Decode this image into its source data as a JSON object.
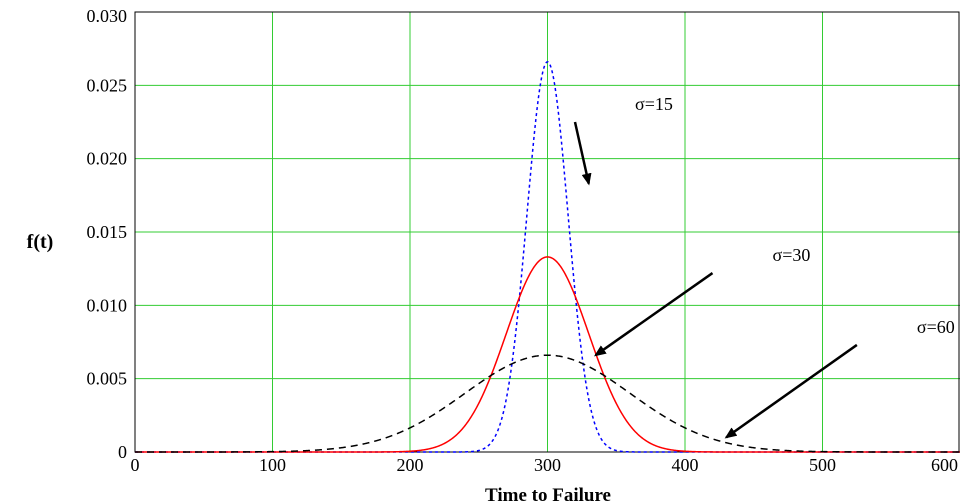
{
  "chart_data": {
    "type": "line",
    "title": "",
    "xlabel": "Time to Failure",
    "ylabel": "f(t)",
    "xlim": [
      0,
      600
    ],
    "ylim": [
      0,
      0.03
    ],
    "grid": true,
    "grid_color": "#33cc33",
    "x_ticks": [
      "0",
      "100",
      "200",
      "300",
      "400",
      "500",
      "600"
    ],
    "y_ticks": [
      "0",
      "0.005",
      "0.010",
      "0.015",
      "0.020",
      "0.025",
      "0.030"
    ],
    "series": [
      {
        "mean": 300,
        "sigma": 15,
        "color": "#0000ff",
        "style": "dotted",
        "peak": 0.0266
      },
      {
        "mean": 300,
        "sigma": 30,
        "color": "#ff0000",
        "style": "solid",
        "peak": 0.0133
      },
      {
        "mean": 300,
        "sigma": 60,
        "color": "#000000",
        "style": "dashed",
        "peak": 0.0066
      }
    ],
    "annotations": [
      {
        "text": "σ=15",
        "arrow_from": [
          320,
          0.0225
        ],
        "arrow_to": [
          330,
          0.0183
        ]
      },
      {
        "text": "σ=30",
        "arrow_from": [
          420,
          0.0122
        ],
        "arrow_to": [
          335,
          0.0066
        ]
      },
      {
        "text": "σ=60",
        "arrow_from": [
          525,
          0.0073
        ],
        "arrow_to": [
          430,
          0.001
        ]
      }
    ]
  }
}
